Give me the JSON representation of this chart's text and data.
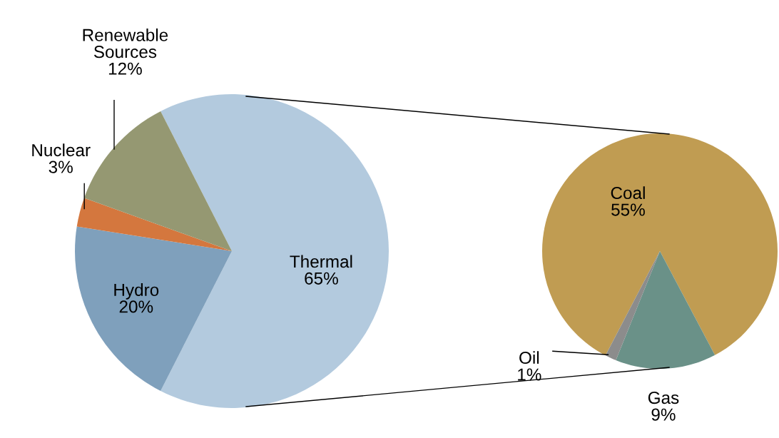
{
  "chart_data": [
    {
      "type": "pie",
      "categories": [
        "Thermal",
        "Hydro",
        "Nuclear",
        "Renewable\nSources"
      ],
      "values": [
        65,
        20,
        3,
        12
      ],
      "colors": [
        "#b3cade",
        "#7fa0bc",
        "#d4773e",
        "#959872"
      ],
      "value_labels": [
        "65%",
        "20%",
        "3%",
        "12%"
      ]
    },
    {
      "type": "pie",
      "categories": [
        "Coal",
        "Gas",
        "Oil"
      ],
      "values": [
        55,
        9,
        1
      ],
      "colors": [
        "#c09c52",
        "#6a9188",
        "#8c8c8c"
      ],
      "value_labels": [
        "55%",
        "9%",
        "1%"
      ]
    }
  ]
}
